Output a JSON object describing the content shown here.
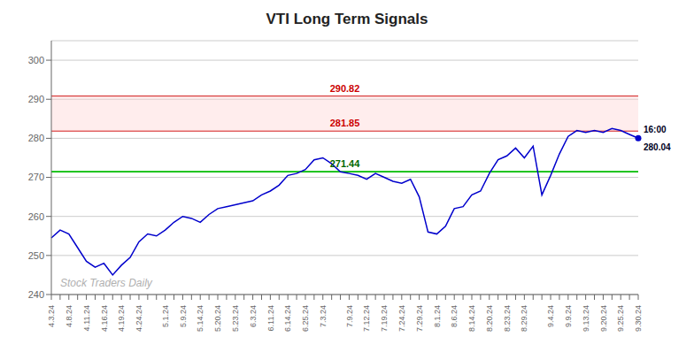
{
  "chart_data": {
    "type": "line",
    "title": "VTI Long Term Signals",
    "categories": [
      "4.3.24",
      null,
      "4.8.24",
      null,
      "4.11.24",
      null,
      "4.16.24",
      null,
      "4.19.24",
      null,
      "4.24.24",
      null,
      null,
      "5.1.24",
      null,
      "5.9.24",
      null,
      "5.14.24",
      null,
      "5.20.24",
      null,
      "5.23.24",
      null,
      "6.3.24",
      null,
      "6.11.24",
      null,
      "6.14.24",
      null,
      "6.25.24",
      null,
      "7.3.24",
      null,
      null,
      "7.9.24",
      null,
      "7.12.24",
      null,
      "7.19.24",
      null,
      "7.24.24",
      null,
      "7.29.24",
      null,
      "8.1.24",
      null,
      "8.6.24",
      null,
      "8.14.24",
      null,
      "8.20.24",
      null,
      "8.23.24",
      null,
      "8.29.24",
      null,
      null,
      "9.4.24",
      null,
      "9.9.24",
      null,
      "9.13.24",
      null,
      "9.20.24",
      null,
      "9.25.24",
      null,
      "9.30.24"
    ],
    "values": [
      254.5,
      256.5,
      255.5,
      252.0,
      248.5,
      247.0,
      248.0,
      245.0,
      247.5,
      249.5,
      253.5,
      255.5,
      255.0,
      256.5,
      258.5,
      260.0,
      259.5,
      258.5,
      260.5,
      262.0,
      262.5,
      263.0,
      263.5,
      264.0,
      265.5,
      266.5,
      268.0,
      270.5,
      271.0,
      272.0,
      274.5,
      275.0,
      273.5,
      271.44,
      271.0,
      270.5,
      269.5,
      271.0,
      270.0,
      269.0,
      268.5,
      269.5,
      265.0,
      256.0,
      255.5,
      257.5,
      262.0,
      262.5,
      265.5,
      266.5,
      271.0,
      274.5,
      275.5,
      277.5,
      275.0,
      278.0,
      265.5,
      270.5,
      276.0,
      280.5,
      282.0,
      281.5,
      282.0,
      281.5,
      282.5,
      282.0,
      281.0,
      280.04
    ],
    "color": "#0000cc",
    "end_labels": [
      "16:00",
      "280.04"
    ],
    "reference_lines": [
      {
        "value": 271.44,
        "label": "271.44",
        "color": "#00bb00",
        "label_color": "#006600"
      },
      {
        "value": 281.85,
        "label": "281.85",
        "color": "#cc0000",
        "label_color": "#cc0000"
      },
      {
        "value": 290.82,
        "label": "290.82",
        "color": "#cc0000",
        "label_color": "#cc0000"
      }
    ],
    "band": {
      "from": 281.85,
      "to": 290.82,
      "color": "#ffcccc"
    },
    "watermark": "Stock Traders Daily",
    "ylim": [
      240,
      305
    ],
    "yticks": [
      240,
      250,
      260,
      270,
      280,
      290,
      300
    ],
    "grid": true
  }
}
